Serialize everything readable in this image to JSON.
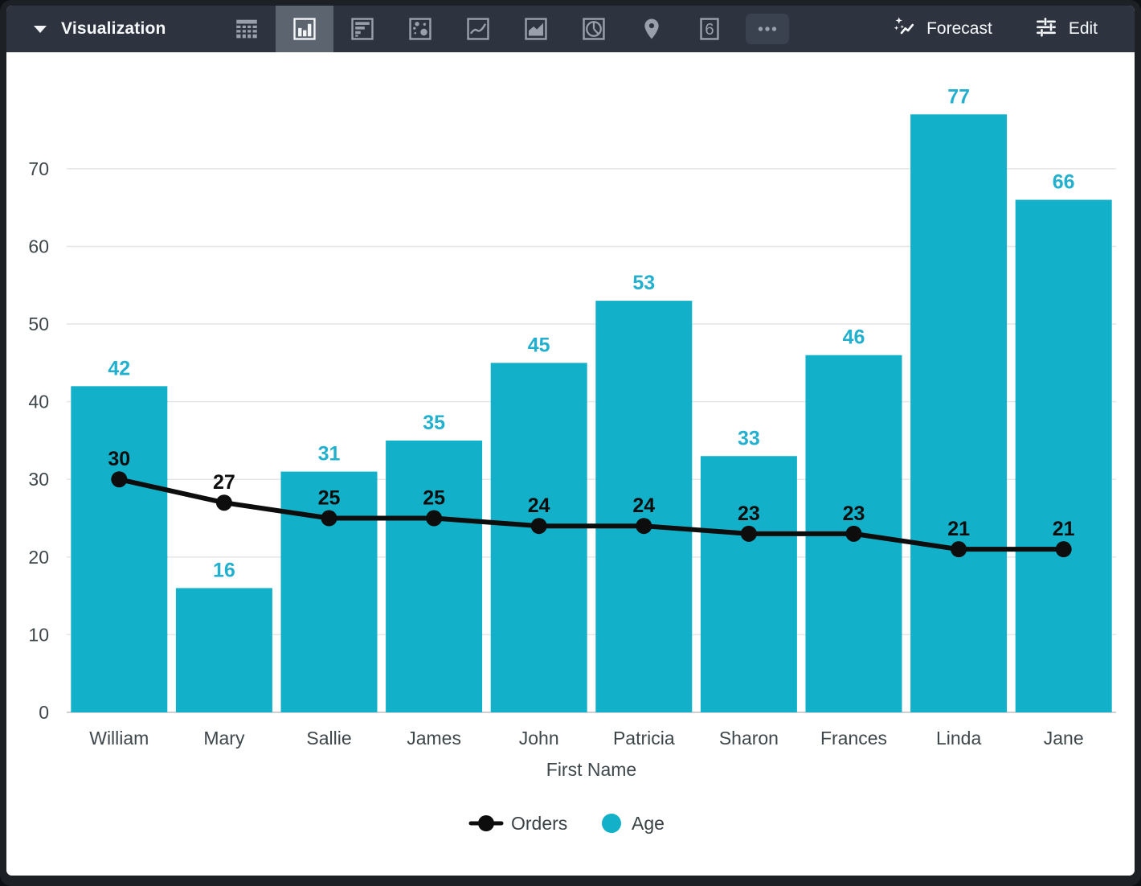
{
  "toolbar": {
    "title": "Visualization",
    "icons": [
      {
        "name": "table-icon",
        "selected": false
      },
      {
        "name": "column-chart-icon",
        "selected": true
      },
      {
        "name": "bar-chart-icon",
        "selected": false
      },
      {
        "name": "scatter-chart-icon",
        "selected": false
      },
      {
        "name": "line-chart-icon",
        "selected": false
      },
      {
        "name": "area-chart-icon",
        "selected": false
      },
      {
        "name": "pie-chart-icon",
        "selected": false
      },
      {
        "name": "map-pin-icon",
        "selected": false
      },
      {
        "name": "single-value-icon",
        "selected": false,
        "glyph": "6"
      },
      {
        "name": "more-options-icon",
        "selected": false
      }
    ],
    "forecast_label": "Forecast",
    "edit_label": "Edit"
  },
  "colors": {
    "toolbar_bg": "#2d3440",
    "selected_tile": "#5c6470",
    "icon_gray": "#98a0ac",
    "bar_teal": "#12b1c9",
    "bar_label_teal": "#23b0ce",
    "line_black": "#0d0d0d",
    "axis_text": "#3e474b",
    "gridline": "#e3e5e6"
  },
  "chart_data": {
    "type": "bar",
    "subtype": "bar-and-line-combo",
    "categories": [
      "William",
      "Mary",
      "Sallie",
      "James",
      "John",
      "Patricia",
      "Sharon",
      "Frances",
      "Linda",
      "Jane"
    ],
    "series": [
      {
        "name": "Age",
        "type": "bar",
        "color": "#12b1c9",
        "values": [
          42,
          16,
          31,
          35,
          45,
          53,
          33,
          46,
          77,
          66
        ]
      },
      {
        "name": "Orders",
        "type": "line",
        "color": "#0d0d0d",
        "values": [
          30,
          27,
          25,
          25,
          24,
          24,
          23,
          23,
          21,
          21
        ]
      }
    ],
    "title": "",
    "xlabel": "First Name",
    "ylabel": "",
    "y_ticks": [
      0,
      10,
      20,
      30,
      40,
      50,
      60,
      70
    ],
    "ylim": [
      0,
      85
    ],
    "grid": true,
    "data_labels": true,
    "legend_position": "bottom"
  }
}
